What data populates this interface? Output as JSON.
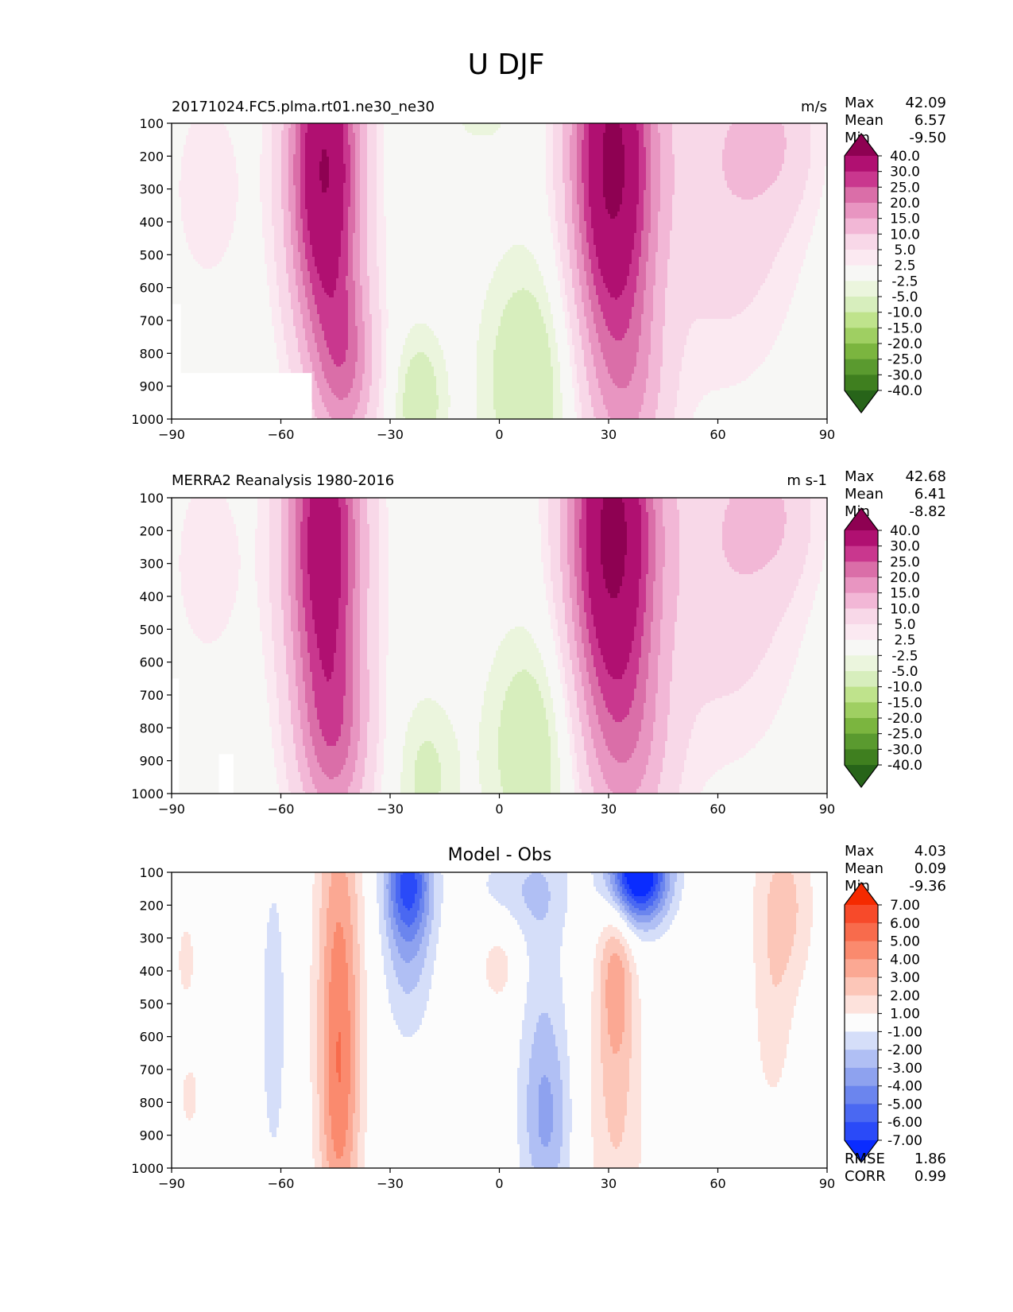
{
  "suptitle": "U DJF",
  "chart_data": [
    {
      "type": "contour",
      "title_left": "20171024.FC5.plma.rt01.ne30_ne30",
      "title_right": "m/s",
      "title_center": "",
      "x_ticks": [
        -90,
        -60,
        -30,
        0,
        30,
        60,
        90
      ],
      "y_ticks": [
        100,
        200,
        300,
        400,
        500,
        600,
        700,
        800,
        900,
        1000
      ],
      "xlim": [
        -90,
        90
      ],
      "ylim": [
        1000,
        100
      ],
      "stats": [
        {
          "label": "Max",
          "value": "42.09"
        },
        {
          "label": "Mean",
          "value": "6.57"
        },
        {
          "label": "Min",
          "value": "-9.50"
        }
      ],
      "levels": [
        -40,
        -30,
        -25,
        -20,
        -15,
        -10,
        -5,
        -2.5,
        2.5,
        5,
        10,
        15,
        20,
        25,
        30,
        40
      ],
      "colorbar_labels": [
        "40.0",
        "30.0",
        "25.0",
        "20.0",
        "15.0",
        "10.0",
        "5.0",
        "2.5",
        "-2.5",
        "-5.0",
        "-10.0",
        "-15.0",
        "-20.0",
        "-25.0",
        "-30.0",
        "-40.0"
      ],
      "colors": [
        "#276419",
        "#3f7f1f",
        "#5a9a2f",
        "#7bb53f",
        "#9fcf62",
        "#bfe38c",
        "#d7eebd",
        "#ebf5dd",
        "#f7f7f5",
        "#fbe9f1",
        "#f8d8e8",
        "#f2b7d6",
        "#e895c1",
        "#da6ea8",
        "#c9378e",
        "#b01071",
        "#8e0152"
      ],
      "missing": [
        {
          "x": [
            -90,
            -51.5
          ],
          "p": [
            860,
            1000
          ]
        },
        {
          "x": [
            -90,
            -87.5
          ],
          "p": [
            650,
            1000
          ]
        }
      ],
      "features": [
        {
          "x": -48,
          "p": 240,
          "a": 40.5,
          "sx": 7,
          "sy": 380
        },
        {
          "x": -42,
          "p": 850,
          "a": 16,
          "sx": 6,
          "sy": 200
        },
        {
          "x": 31,
          "p": 220,
          "a": 42,
          "sx": 8,
          "sy": 420
        },
        {
          "x": 36,
          "p": 950,
          "a": 10,
          "sx": 8,
          "sy": 250
        },
        {
          "x": 62,
          "p": 260,
          "a": 9,
          "sx": 14,
          "sy": 400
        },
        {
          "x": 76,
          "p": 150,
          "a": 6,
          "sx": 8,
          "sy": 160
        },
        {
          "x": 8,
          "p": 880,
          "a": -9,
          "sx": 9,
          "sy": 270
        },
        {
          "x": -22,
          "p": 950,
          "a": -8,
          "sx": 5,
          "sy": 160
        },
        {
          "x": -5,
          "p": 100,
          "a": -3,
          "sx": 8,
          "sy": 60
        },
        {
          "x": -80,
          "p": 300,
          "a": 4,
          "sx": 8,
          "sy": 250
        }
      ]
    },
    {
      "type": "contour",
      "title_left": "MERRA2 Reanalysis 1980-2016",
      "title_right": "m s-1",
      "title_center": "",
      "x_ticks": [
        -90,
        -60,
        -30,
        0,
        30,
        60,
        90
      ],
      "y_ticks": [
        100,
        200,
        300,
        400,
        500,
        600,
        700,
        800,
        900,
        1000
      ],
      "xlim": [
        -90,
        90
      ],
      "ylim": [
        1000,
        100
      ],
      "stats": [
        {
          "label": "Max",
          "value": "42.68"
        },
        {
          "label": "Mean",
          "value": "6.41"
        },
        {
          "label": "Min",
          "value": "-8.82"
        }
      ],
      "levels": [
        -40,
        -30,
        -25,
        -20,
        -15,
        -10,
        -5,
        -2.5,
        2.5,
        5,
        10,
        15,
        20,
        25,
        30,
        40
      ],
      "colorbar_labels": [
        "40.0",
        "30.0",
        "25.0",
        "20.0",
        "15.0",
        "10.0",
        "5.0",
        "2.5",
        "-2.5",
        "-5.0",
        "-10.0",
        "-15.0",
        "-20.0",
        "-25.0",
        "-30.0",
        "-40.0"
      ],
      "colors": [
        "#276419",
        "#3f7f1f",
        "#5a9a2f",
        "#7bb53f",
        "#9fcf62",
        "#bfe38c",
        "#d7eebd",
        "#ebf5dd",
        "#f7f7f5",
        "#fbe9f1",
        "#f8d8e8",
        "#f2b7d6",
        "#e895c1",
        "#da6ea8",
        "#c9378e",
        "#b01071",
        "#8e0152"
      ],
      "missing": [
        {
          "x": [
            -90,
            -88
          ],
          "p": [
            650,
            1000
          ]
        },
        {
          "x": [
            -77,
            -73
          ],
          "p": [
            880,
            1000
          ]
        }
      ],
      "features": [
        {
          "x": -48,
          "p": 230,
          "a": 36,
          "sx": 7.5,
          "sy": 400
        },
        {
          "x": -45,
          "p": 850,
          "a": 15,
          "sx": 7,
          "sy": 220
        },
        {
          "x": 31,
          "p": 210,
          "a": 42.5,
          "sx": 8.5,
          "sy": 420
        },
        {
          "x": 36,
          "p": 900,
          "a": 10,
          "sx": 9,
          "sy": 250
        },
        {
          "x": 62,
          "p": 260,
          "a": 9,
          "sx": 14,
          "sy": 400
        },
        {
          "x": 76,
          "p": 150,
          "a": 6,
          "sx": 8,
          "sy": 160
        },
        {
          "x": 9,
          "p": 860,
          "a": -8.5,
          "sx": 9,
          "sy": 260
        },
        {
          "x": -20,
          "p": 950,
          "a": -6,
          "sx": 6,
          "sy": 180
        },
        {
          "x": -80,
          "p": 300,
          "a": 4,
          "sx": 8,
          "sy": 250
        }
      ]
    },
    {
      "type": "contour",
      "title_left": "",
      "title_right": "",
      "title_center": "Model - Obs",
      "x_ticks": [
        -90,
        -60,
        -30,
        0,
        30,
        60,
        90
      ],
      "y_ticks": [
        100,
        200,
        300,
        400,
        500,
        600,
        700,
        800,
        900,
        1000
      ],
      "xlim": [
        -90,
        90
      ],
      "ylim": [
        1000,
        100
      ],
      "stats": [
        {
          "label": "Max",
          "value": "4.03"
        },
        {
          "label": "Mean",
          "value": "0.09"
        },
        {
          "label": "Min",
          "value": "-9.36"
        }
      ],
      "extra_stats": [
        {
          "label": "RMSE",
          "value": "1.86"
        },
        {
          "label": "CORR",
          "value": "0.99"
        }
      ],
      "levels": [
        -7,
        -6,
        -5,
        -4,
        -3,
        -2,
        -1,
        1,
        2,
        3,
        4,
        5,
        6,
        7
      ],
      "colorbar_labels": [
        "7.00",
        "6.00",
        "5.00",
        "4.00",
        "3.00",
        "2.00",
        "1.00",
        "-1.00",
        "-2.00",
        "-3.00",
        "-4.00",
        "-5.00",
        "-6.00",
        "-7.00"
      ],
      "colors": [
        "#0a2cff",
        "#2a4af8",
        "#4a68f2",
        "#6b85ee",
        "#8ea2ef",
        "#b0bff4",
        "#d5def9",
        "#fcfcfc",
        "#fde2dc",
        "#fcc6b8",
        "#fba893",
        "#fa8a6e",
        "#f86b4c",
        "#f74a2a",
        "#f52a00"
      ],
      "missing": [],
      "features": [
        {
          "x": -44,
          "p": 400,
          "a": 4.0,
          "sx": 4.5,
          "sy": 450
        },
        {
          "x": -44,
          "p": 900,
          "a": 2.3,
          "sx": 4.0,
          "sy": 300
        },
        {
          "x": 38,
          "p": 100,
          "a": -9.36,
          "sx": 6,
          "sy": 110
        },
        {
          "x": -25,
          "p": 120,
          "a": -5.5,
          "sx": 4.5,
          "sy": 130
        },
        {
          "x": -25,
          "p": 350,
          "a": -2.2,
          "sx": 5,
          "sy": 200
        },
        {
          "x": 32,
          "p": 400,
          "a": 3.0,
          "sx": 3.5,
          "sy": 200
        },
        {
          "x": 32,
          "p": 850,
          "a": 2.0,
          "sx": 6,
          "sy": 320
        },
        {
          "x": 78,
          "p": 200,
          "a": 2.4,
          "sx": 6,
          "sy": 200
        },
        {
          "x": 75,
          "p": 600,
          "a": 1.3,
          "sx": 4,
          "sy": 200
        },
        {
          "x": 13,
          "p": 870,
          "a": -2.3,
          "sx": 5,
          "sy": 200
        },
        {
          "x": 12,
          "p": 500,
          "a": -1.5,
          "sx": 5,
          "sy": 400
        },
        {
          "x": -62,
          "p": 550,
          "a": -1.5,
          "sx": 3,
          "sy": 400
        },
        {
          "x": 0,
          "p": 380,
          "a": 1.6,
          "sx": 4,
          "sy": 100
        },
        {
          "x": 5,
          "p": 150,
          "a": -1.5,
          "sx": 10,
          "sy": 100
        },
        {
          "x": -86,
          "p": 370,
          "a": 1.5,
          "sx": 2,
          "sy": 100
        },
        {
          "x": -85,
          "p": 780,
          "a": 1.5,
          "sx": 2,
          "sy": 80
        }
      ]
    }
  ]
}
